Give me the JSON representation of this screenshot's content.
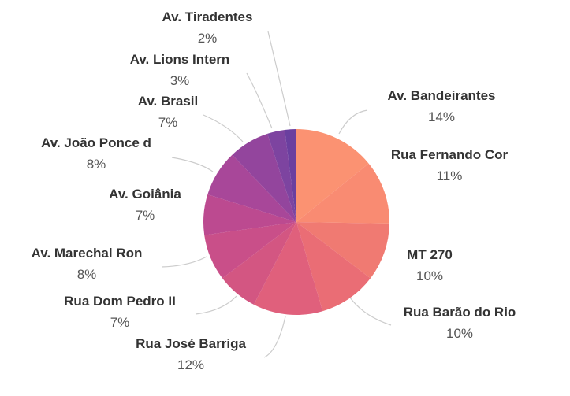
{
  "chart_data": {
    "type": "pie",
    "title": "",
    "slices": [
      {
        "label": "Av. Bandeirantes",
        "value": 14,
        "pct_label": "14%",
        "color": "#FB9272"
      },
      {
        "label": "Rua Fernando Cor",
        "value": 11,
        "pct_label": "11%",
        "color": "#F98B72"
      },
      {
        "label": "MT 270",
        "value": 10,
        "pct_label": "10%",
        "color": "#F07A72"
      },
      {
        "label": "Rua Barão do Rio",
        "value": 10,
        "pct_label": "10%",
        "color": "#EA6D75"
      },
      {
        "label": "Rua José Barriga",
        "value": 12,
        "pct_label": "12%",
        "color": "#E0607C"
      },
      {
        "label": "Rua Dom Pedro II",
        "value": 7,
        "pct_label": "7%",
        "color": "#D35682"
      },
      {
        "label": "Av. Marechal Ron",
        "value": 8,
        "pct_label": "8%",
        "color": "#C94F89"
      },
      {
        "label": "Av. Goiânia",
        "value": 7,
        "pct_label": "7%",
        "color": "#BC4A90"
      },
      {
        "label": "Av. João Ponce d",
        "value": 8,
        "pct_label": "8%",
        "color": "#A84799"
      },
      {
        "label": "Av. Brasil",
        "value": 7,
        "pct_label": "7%",
        "color": "#93459D"
      },
      {
        "label": "Av. Lions Intern",
        "value": 3,
        "pct_label": "3%",
        "color": "#7D44A0"
      },
      {
        "label": "Av. Tiradentes",
        "value": 2,
        "pct_label": "2%",
        "color": "#6A3F9F"
      }
    ]
  }
}
